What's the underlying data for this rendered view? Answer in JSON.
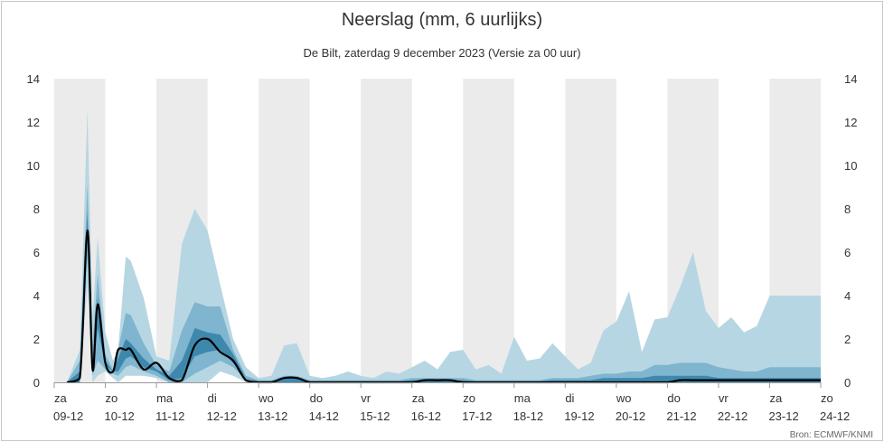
{
  "chart_data": {
    "type": "area",
    "title": "Neerslag (mm, 6 uurlijks)",
    "subtitle": "De Bilt, zaterdag 9 december 2023 (Versie za 00 uur)",
    "source": "Bron: ECMWF/KNMI",
    "xlabel": "",
    "ylabel": "",
    "ylim": [
      0,
      14
    ],
    "yticks": [
      0,
      2,
      4,
      6,
      8,
      10,
      12,
      14
    ],
    "day_labels": [
      {
        "day": "za",
        "date": "09-12"
      },
      {
        "day": "zo",
        "date": "10-12"
      },
      {
        "day": "ma",
        "date": "11-12"
      },
      {
        "day": "di",
        "date": "12-12"
      },
      {
        "day": "wo",
        "date": "13-12"
      },
      {
        "day": "do",
        "date": "14-12"
      },
      {
        "day": "vr",
        "date": "15-12"
      },
      {
        "day": "za",
        "date": "16-12"
      },
      {
        "day": "zo",
        "date": "17-12"
      },
      {
        "day": "ma",
        "date": "18-12"
      },
      {
        "day": "di",
        "date": "19-12"
      },
      {
        "day": "wo",
        "date": "20-12"
      },
      {
        "day": "do",
        "date": "21-12"
      },
      {
        "day": "vr",
        "date": "22-12"
      },
      {
        "day": "za",
        "date": "23-12"
      },
      {
        "day": "zo",
        "date": "24-12"
      }
    ],
    "grid": "alternating shaded day bands",
    "colors": {
      "outer_band": "#b7d6e3",
      "mid_band": "#7fb5cf",
      "inner_band": "#3e88ad",
      "median_line": "#000000",
      "day_band": "#ebebeb"
    },
    "x_days": [
      0.25,
      0.5,
      0.65,
      0.75,
      0.85,
      1.0,
      1.15,
      1.25,
      1.4,
      1.5,
      1.75,
      2.0,
      2.25,
      2.5,
      2.75,
      3.0,
      3.25,
      3.5,
      3.75,
      4.0,
      4.25,
      4.5,
      4.75,
      5.0,
      5.25,
      5.5,
      5.75,
      6.0,
      6.25,
      6.5,
      6.75,
      7.0,
      7.25,
      7.5,
      7.75,
      8.0,
      8.25,
      8.5,
      8.75,
      9.0,
      9.25,
      9.5,
      9.75,
      10.0,
      10.25,
      10.5,
      10.75,
      11.0,
      11.25,
      11.5,
      11.75,
      12.0,
      12.25,
      12.5,
      12.75,
      13.0,
      13.25,
      13.5,
      13.75,
      14.0,
      14.25,
      14.5,
      14.75,
      15.0
    ],
    "outer_low": [
      0,
      0,
      4.5,
      0,
      0.3,
      0.5,
      0.2,
      0,
      0.3,
      0.3,
      0.3,
      0.2,
      0,
      0,
      0,
      0,
      0.5,
      0.3,
      0,
      0,
      0,
      0,
      0,
      0,
      0,
      0,
      0,
      0,
      0,
      0,
      0,
      0,
      0,
      0,
      0,
      0,
      0,
      0,
      0,
      0,
      0,
      0,
      0,
      0,
      0,
      0,
      0,
      0,
      0,
      0,
      0,
      0,
      0,
      0,
      0,
      0,
      0,
      0,
      0,
      0,
      0,
      0,
      0,
      0
    ],
    "outer_high": [
      0,
      1.5,
      12.6,
      3.0,
      6.7,
      2.3,
      1.0,
      1.5,
      5.8,
      5.6,
      3.9,
      1.2,
      1.0,
      6.4,
      8.0,
      7.0,
      4.5,
      2.0,
      0.7,
      0.2,
      0.3,
      1.7,
      1.8,
      0.3,
      0.2,
      0.3,
      0.5,
      0.3,
      0.2,
      0.5,
      0.4,
      0.7,
      1.0,
      0.6,
      1.4,
      1.5,
      0.6,
      0.8,
      0.4,
      2.1,
      1.0,
      1.1,
      1.8,
      1.2,
      0.6,
      0.9,
      2.4,
      2.8,
      4.2,
      1.4,
      2.9,
      3.0,
      4.4,
      6.0,
      3.3,
      2.5,
      3.0,
      2.3,
      2.6,
      4.0,
      4.0,
      4.0,
      4.0,
      4.0
    ],
    "mid_low": [
      0,
      0,
      5.8,
      0.3,
      1.0,
      0.6,
      0.4,
      0.3,
      0.7,
      0.8,
      0.5,
      0.3,
      0,
      0,
      0.4,
      0.7,
      1.0,
      0.7,
      0.1,
      0,
      0,
      0,
      0,
      0,
      0,
      0,
      0,
      0,
      0,
      0,
      0,
      0,
      0,
      0,
      0,
      0,
      0,
      0,
      0,
      0,
      0,
      0,
      0,
      0,
      0,
      0,
      0,
      0,
      0,
      0,
      0,
      0,
      0,
      0,
      0,
      0,
      0,
      0,
      0,
      0,
      0,
      0,
      0,
      0
    ],
    "mid_high": [
      0,
      1.0,
      9.1,
      1.8,
      5.0,
      1.3,
      0.6,
      1.5,
      3.2,
      3.1,
      1.8,
      0.8,
      0.5,
      2.4,
      3.7,
      3.5,
      3.5,
      1.5,
      0.3,
      0.1,
      0.1,
      0.3,
      0.3,
      0.1,
      0.1,
      0.1,
      0.1,
      0.1,
      0.1,
      0.1,
      0.1,
      0.2,
      0.2,
      0.2,
      0.2,
      0.2,
      0.1,
      0.1,
      0.1,
      0.1,
      0.1,
      0.1,
      0.2,
      0.2,
      0.2,
      0.3,
      0.4,
      0.4,
      0.5,
      0.5,
      0.8,
      0.8,
      0.9,
      0.9,
      0.9,
      0.7,
      0.6,
      0.5,
      0.5,
      0.7,
      0.7,
      0.7,
      0.7,
      0.7
    ],
    "inner_low": [
      0,
      0,
      6.5,
      0.5,
      2.5,
      0.8,
      0.5,
      0.5,
      1.1,
      1.2,
      0.7,
      0.5,
      0.1,
      0.2,
      1.2,
      1.4,
      1.5,
      0.9,
      0.2,
      0,
      0,
      0,
      0,
      0,
      0,
      0,
      0,
      0,
      0,
      0,
      0,
      0,
      0,
      0,
      0,
      0,
      0,
      0,
      0,
      0,
      0,
      0,
      0,
      0,
      0,
      0,
      0,
      0,
      0,
      0,
      0,
      0,
      0,
      0,
      0,
      0,
      0,
      0,
      0,
      0,
      0,
      0,
      0,
      0
    ],
    "inner_high": [
      0,
      0.5,
      7.8,
      1.0,
      3.9,
      1.0,
      0.5,
      1.1,
      2.0,
      1.8,
      1.1,
      0.6,
      0.3,
      1.0,
      2.5,
      2.3,
      2.2,
      1.3,
      0.2,
      0.05,
      0.05,
      0.2,
      0.2,
      0.05,
      0.05,
      0.05,
      0.05,
      0.05,
      0.05,
      0.05,
      0.05,
      0.1,
      0.1,
      0.1,
      0.1,
      0.1,
      0.05,
      0.05,
      0.05,
      0.05,
      0.05,
      0.05,
      0.1,
      0.1,
      0.1,
      0.1,
      0.2,
      0.2,
      0.2,
      0.2,
      0.3,
      0.3,
      0.3,
      0.3,
      0.3,
      0.2,
      0.2,
      0.2,
      0.2,
      0.2,
      0.2,
      0.2,
      0.2,
      0.2
    ],
    "median": [
      0,
      0.2,
      7.0,
      0.6,
      3.6,
      0.9,
      0.5,
      1.5,
      1.5,
      1.5,
      0.6,
      0.9,
      0.2,
      0.1,
      1.7,
      2.0,
      1.4,
      1.0,
      0.1,
      0,
      0,
      0.2,
      0.2,
      0,
      0,
      0,
      0,
      0,
      0,
      0,
      0,
      0,
      0.1,
      0.1,
      0.1,
      0,
      0,
      0,
      0,
      0,
      0,
      0,
      0,
      0,
      0,
      0,
      0,
      0,
      0,
      0,
      0,
      0,
      0.1,
      0.1,
      0.1,
      0.1,
      0.1,
      0.1,
      0.1,
      0.1,
      0.1,
      0.1,
      0.1,
      0.1
    ]
  }
}
